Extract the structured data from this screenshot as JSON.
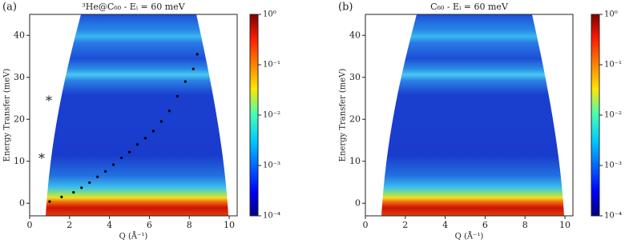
{
  "chart_data": [
    {
      "type": "heatmap",
      "panel_label": "(a)",
      "title": "³He@C₆₀ - Eᵢ = 60 meV",
      "xlabel": "Q (Å⁻¹)",
      "ylabel": "Energy Transfer (meV)",
      "xlim": [
        0,
        10.4
      ],
      "ylim": [
        -3,
        45
      ],
      "xticks": [
        0,
        2,
        4,
        6,
        8,
        10
      ],
      "yticks": [
        0,
        10,
        20,
        30,
        40
      ],
      "colorbar_log_scale": true,
      "colorbar_lim": [
        0.0001,
        1
      ],
      "colorbar_ticks": [
        {
          "value": 1,
          "label": "10⁰"
        },
        {
          "value": 0.1,
          "label": "10⁻¹"
        },
        {
          "value": 0.01,
          "label": "10⁻²"
        },
        {
          "value": 0.001,
          "label": "10⁻³"
        },
        {
          "value": 0.0001,
          "label": "10⁻⁴"
        }
      ],
      "annotations": [
        "*",
        "*"
      ],
      "series": [
        {
          "color": "#000000",
          "x": [
            1.0,
            1.6,
            2.2,
            2.6,
            3.0,
            3.4,
            3.8,
            4.2,
            4.6,
            5.0,
            5.4,
            5.8,
            6.2,
            6.6,
            7.0,
            7.4,
            7.8,
            8.2,
            8.4
          ],
          "values": [
            0.4,
            1.5,
            2.6,
            3.7,
            4.9,
            6.3,
            7.6,
            9.2,
            10.8,
            12.2,
            14,
            15.5,
            17.2,
            19.5,
            22,
            25.5,
            29,
            32,
            35.5
          ]
        }
      ]
    },
    {
      "type": "heatmap",
      "panel_label": "(b)",
      "title": "C₆₀ - Eᵢ = 60 meV",
      "xlabel": "Q (Å⁻¹)",
      "ylabel": "Energy Transfer (meV)",
      "xlim": [
        0,
        10.4
      ],
      "ylim": [
        -3,
        45
      ],
      "xticks": [
        0,
        2,
        4,
        6,
        8,
        10
      ],
      "yticks": [
        0,
        10,
        20,
        30,
        40
      ],
      "colorbar_log_scale": true,
      "colorbar_lim": [
        0.0001,
        1
      ],
      "colorbar_ticks": [
        {
          "value": 1,
          "label": "10⁰"
        },
        {
          "value": 0.1,
          "label": "10⁻¹"
        },
        {
          "value": 0.01,
          "label": "10⁻²"
        },
        {
          "value": 0.001,
          "label": "10⁻³"
        },
        {
          "value": 0.0001,
          "label": "10⁻⁴"
        }
      ]
    }
  ]
}
